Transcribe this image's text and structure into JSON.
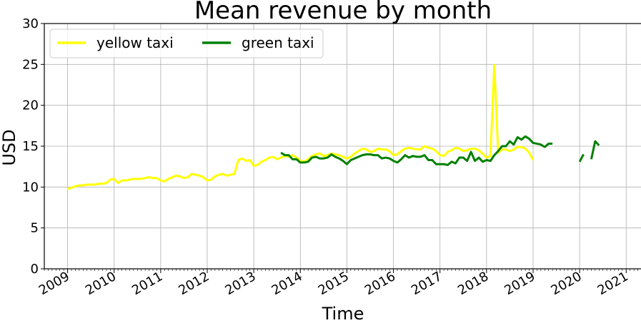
{
  "chart_data": {
    "type": "line",
    "title": "Mean revenue by month",
    "xlabel": "Time",
    "ylabel": "USD",
    "ylim": [
      0,
      30
    ],
    "xlim": [
      "2008-07",
      "2021-05"
    ],
    "yticks": [
      0,
      5,
      10,
      15,
      20,
      25,
      30
    ],
    "xticks": [
      "2009",
      "2010",
      "2011",
      "2012",
      "2013",
      "2014",
      "2015",
      "2016",
      "2017",
      "2018",
      "2019",
      "2020",
      "2021"
    ],
    "grid": true,
    "legend": {
      "location": "upper-left",
      "columns": 2
    },
    "series": [
      {
        "name": "yellow taxi",
        "color": "#ffff00",
        "points": [
          [
            "2009-01",
            9.8
          ],
          [
            "2009-02",
            9.9
          ],
          [
            "2009-03",
            10.1
          ],
          [
            "2009-04",
            10.2
          ],
          [
            "2009-05",
            10.2
          ],
          [
            "2009-06",
            10.3
          ],
          [
            "2009-07",
            10.3
          ],
          [
            "2009-08",
            10.3
          ],
          [
            "2009-09",
            10.4
          ],
          [
            "2009-10",
            10.4
          ],
          [
            "2009-11",
            10.5
          ],
          [
            "2009-12",
            10.9
          ],
          [
            "2010-01",
            11.0
          ],
          [
            "2010-02",
            10.5
          ],
          [
            "2010-03",
            10.8
          ],
          [
            "2010-04",
            10.8
          ],
          [
            "2010-05",
            10.9
          ],
          [
            "2010-06",
            11.0
          ],
          [
            "2010-07",
            11.0
          ],
          [
            "2010-08",
            11.0
          ],
          [
            "2010-09",
            11.1
          ],
          [
            "2010-10",
            11.2
          ],
          [
            "2010-11",
            11.1
          ],
          [
            "2010-12",
            11.1
          ],
          [
            "2011-01",
            10.8
          ],
          [
            "2011-02",
            10.7
          ],
          [
            "2011-03",
            11.0
          ],
          [
            "2011-04",
            11.2
          ],
          [
            "2011-05",
            11.4
          ],
          [
            "2011-06",
            11.3
          ],
          [
            "2011-07",
            11.1
          ],
          [
            "2011-08",
            11.2
          ],
          [
            "2011-09",
            11.6
          ],
          [
            "2011-10",
            11.5
          ],
          [
            "2011-11",
            11.4
          ],
          [
            "2011-12",
            11.2
          ],
          [
            "2012-01",
            10.8
          ],
          [
            "2012-02",
            10.9
          ],
          [
            "2012-03",
            11.3
          ],
          [
            "2012-04",
            11.5
          ],
          [
            "2012-05",
            11.6
          ],
          [
            "2012-06",
            11.4
          ],
          [
            "2012-07",
            11.5
          ],
          [
            "2012-08",
            11.6
          ],
          [
            "2012-09",
            13.3
          ],
          [
            "2012-10",
            13.5
          ],
          [
            "2012-11",
            13.2
          ],
          [
            "2012-12",
            13.3
          ],
          [
            "2013-01",
            12.6
          ],
          [
            "2013-02",
            12.7
          ],
          [
            "2013-03",
            13.1
          ],
          [
            "2013-04",
            13.3
          ],
          [
            "2013-05",
            13.6
          ],
          [
            "2013-06",
            13.7
          ],
          [
            "2013-07",
            13.4
          ],
          [
            "2013-08",
            13.6
          ],
          [
            "2013-09",
            13.8
          ],
          [
            "2013-10",
            13.7
          ],
          [
            "2013-11",
            13.9
          ],
          [
            "2013-12",
            13.6
          ],
          [
            "2014-01",
            13.2
          ],
          [
            "2014-02",
            13.1
          ],
          [
            "2014-03",
            13.4
          ],
          [
            "2014-04",
            13.8
          ],
          [
            "2014-05",
            14.0
          ],
          [
            "2014-06",
            14.1
          ],
          [
            "2014-07",
            13.8
          ],
          [
            "2014-08",
            13.9
          ],
          [
            "2014-09",
            14.1
          ],
          [
            "2014-10",
            14.0
          ],
          [
            "2014-11",
            13.9
          ],
          [
            "2014-12",
            13.7
          ],
          [
            "2015-01",
            13.5
          ],
          [
            "2015-02",
            13.7
          ],
          [
            "2015-03",
            14.1
          ],
          [
            "2015-04",
            14.4
          ],
          [
            "2015-05",
            14.7
          ],
          [
            "2015-06",
            14.6
          ],
          [
            "2015-07",
            14.3
          ],
          [
            "2015-08",
            14.4
          ],
          [
            "2015-09",
            14.7
          ],
          [
            "2015-10",
            14.6
          ],
          [
            "2015-11",
            14.6
          ],
          [
            "2015-12",
            14.4
          ],
          [
            "2016-01",
            13.9
          ],
          [
            "2016-02",
            14.0
          ],
          [
            "2016-03",
            14.4
          ],
          [
            "2016-04",
            14.7
          ],
          [
            "2016-05",
            14.8
          ],
          [
            "2016-06",
            14.7
          ],
          [
            "2016-07",
            14.6
          ],
          [
            "2016-08",
            14.6
          ],
          [
            "2016-09",
            15.0
          ],
          [
            "2016-10",
            14.8
          ],
          [
            "2016-11",
            14.7
          ],
          [
            "2016-12",
            14.4
          ],
          [
            "2017-01",
            13.9
          ],
          [
            "2017-02",
            13.8
          ],
          [
            "2017-03",
            14.3
          ],
          [
            "2017-04",
            14.5
          ],
          [
            "2017-05",
            14.8
          ],
          [
            "2017-06",
            14.7
          ],
          [
            "2017-07",
            14.4
          ],
          [
            "2017-08",
            14.5
          ],
          [
            "2017-09",
            14.7
          ],
          [
            "2017-10",
            14.7
          ],
          [
            "2017-11",
            14.5
          ],
          [
            "2017-12",
            14.1
          ],
          [
            "2018-01",
            13.6
          ],
          [
            "2018-02",
            13.8
          ],
          [
            "2018-03",
            24.9
          ],
          [
            "2018-04",
            14.2
          ],
          [
            "2018-05",
            14.6
          ],
          [
            "2018-06",
            14.6
          ],
          [
            "2018-07",
            14.4
          ],
          [
            "2018-08",
            14.6
          ],
          [
            "2018-09",
            14.9
          ],
          [
            "2018-10",
            14.9
          ],
          [
            "2018-11",
            14.7
          ],
          [
            "2018-12",
            14.2
          ],
          [
            "2019-01",
            13.3
          ]
        ]
      },
      {
        "name": "green taxi",
        "color": "#008000",
        "points": [
          [
            "2013-08",
            14.2
          ],
          [
            "2013-09",
            13.9
          ],
          [
            "2013-10",
            13.9
          ],
          [
            "2013-11",
            13.4
          ],
          [
            "2013-12",
            13.4
          ],
          [
            "2014-01",
            13.0
          ],
          [
            "2014-02",
            13.0
          ],
          [
            "2014-03",
            13.1
          ],
          [
            "2014-04",
            13.6
          ],
          [
            "2014-05",
            13.7
          ],
          [
            "2014-06",
            13.5
          ],
          [
            "2014-07",
            13.5
          ],
          [
            "2014-08",
            13.6
          ],
          [
            "2014-09",
            14.0
          ],
          [
            "2014-10",
            13.7
          ],
          [
            "2014-11",
            13.5
          ],
          [
            "2014-12",
            13.2
          ],
          [
            "2015-01",
            12.8
          ],
          [
            "2015-02",
            13.3
          ],
          [
            "2015-03",
            13.5
          ],
          [
            "2015-04",
            13.7
          ],
          [
            "2015-05",
            13.9
          ],
          [
            "2015-06",
            14.0
          ],
          [
            "2015-07",
            14.0
          ],
          [
            "2015-08",
            13.9
          ],
          [
            "2015-09",
            13.9
          ],
          [
            "2015-10",
            13.5
          ],
          [
            "2015-11",
            13.6
          ],
          [
            "2015-12",
            13.5
          ],
          [
            "2016-01",
            13.2
          ],
          [
            "2016-02",
            13.0
          ],
          [
            "2016-03",
            13.4
          ],
          [
            "2016-04",
            13.9
          ],
          [
            "2016-05",
            13.6
          ],
          [
            "2016-06",
            13.8
          ],
          [
            "2016-07",
            13.7
          ],
          [
            "2016-08",
            13.7
          ],
          [
            "2016-09",
            13.9
          ],
          [
            "2016-10",
            13.3
          ],
          [
            "2016-11",
            13.3
          ],
          [
            "2016-12",
            12.8
          ],
          [
            "2017-01",
            12.8
          ],
          [
            "2017-02",
            12.8
          ],
          [
            "2017-03",
            12.7
          ],
          [
            "2017-04",
            13.1
          ],
          [
            "2017-05",
            12.9
          ],
          [
            "2017-06",
            13.6
          ],
          [
            "2017-07",
            13.6
          ],
          [
            "2017-08",
            13.2
          ],
          [
            "2017-09",
            14.3
          ],
          [
            "2017-10",
            13.2
          ],
          [
            "2017-11",
            13.6
          ],
          [
            "2017-12",
            13.1
          ],
          [
            "2018-01",
            13.3
          ],
          [
            "2018-02",
            13.2
          ],
          [
            "2018-03",
            13.9
          ],
          [
            "2018-04",
            14.4
          ],
          [
            "2018-05",
            15.0
          ],
          [
            "2018-06",
            15.0
          ],
          [
            "2018-07",
            15.6
          ],
          [
            "2018-08",
            15.2
          ],
          [
            "2018-09",
            16.1
          ],
          [
            "2018-10",
            15.8
          ],
          [
            "2018-11",
            16.2
          ],
          [
            "2018-12",
            15.9
          ],
          [
            "2019-01",
            15.4
          ],
          [
            "2019-02",
            15.3
          ],
          [
            "2019-03",
            15.2
          ],
          [
            "2019-04",
            14.9
          ],
          [
            "2019-05",
            15.3
          ],
          [
            "2019-06",
            15.3
          ],
          null,
          [
            "2020-01",
            13.1
          ],
          [
            "2020-02",
            14.0
          ],
          null,
          [
            "2020-04",
            13.4
          ],
          [
            "2020-05",
            15.6
          ],
          [
            "2020-06",
            15.1
          ]
        ]
      }
    ]
  }
}
